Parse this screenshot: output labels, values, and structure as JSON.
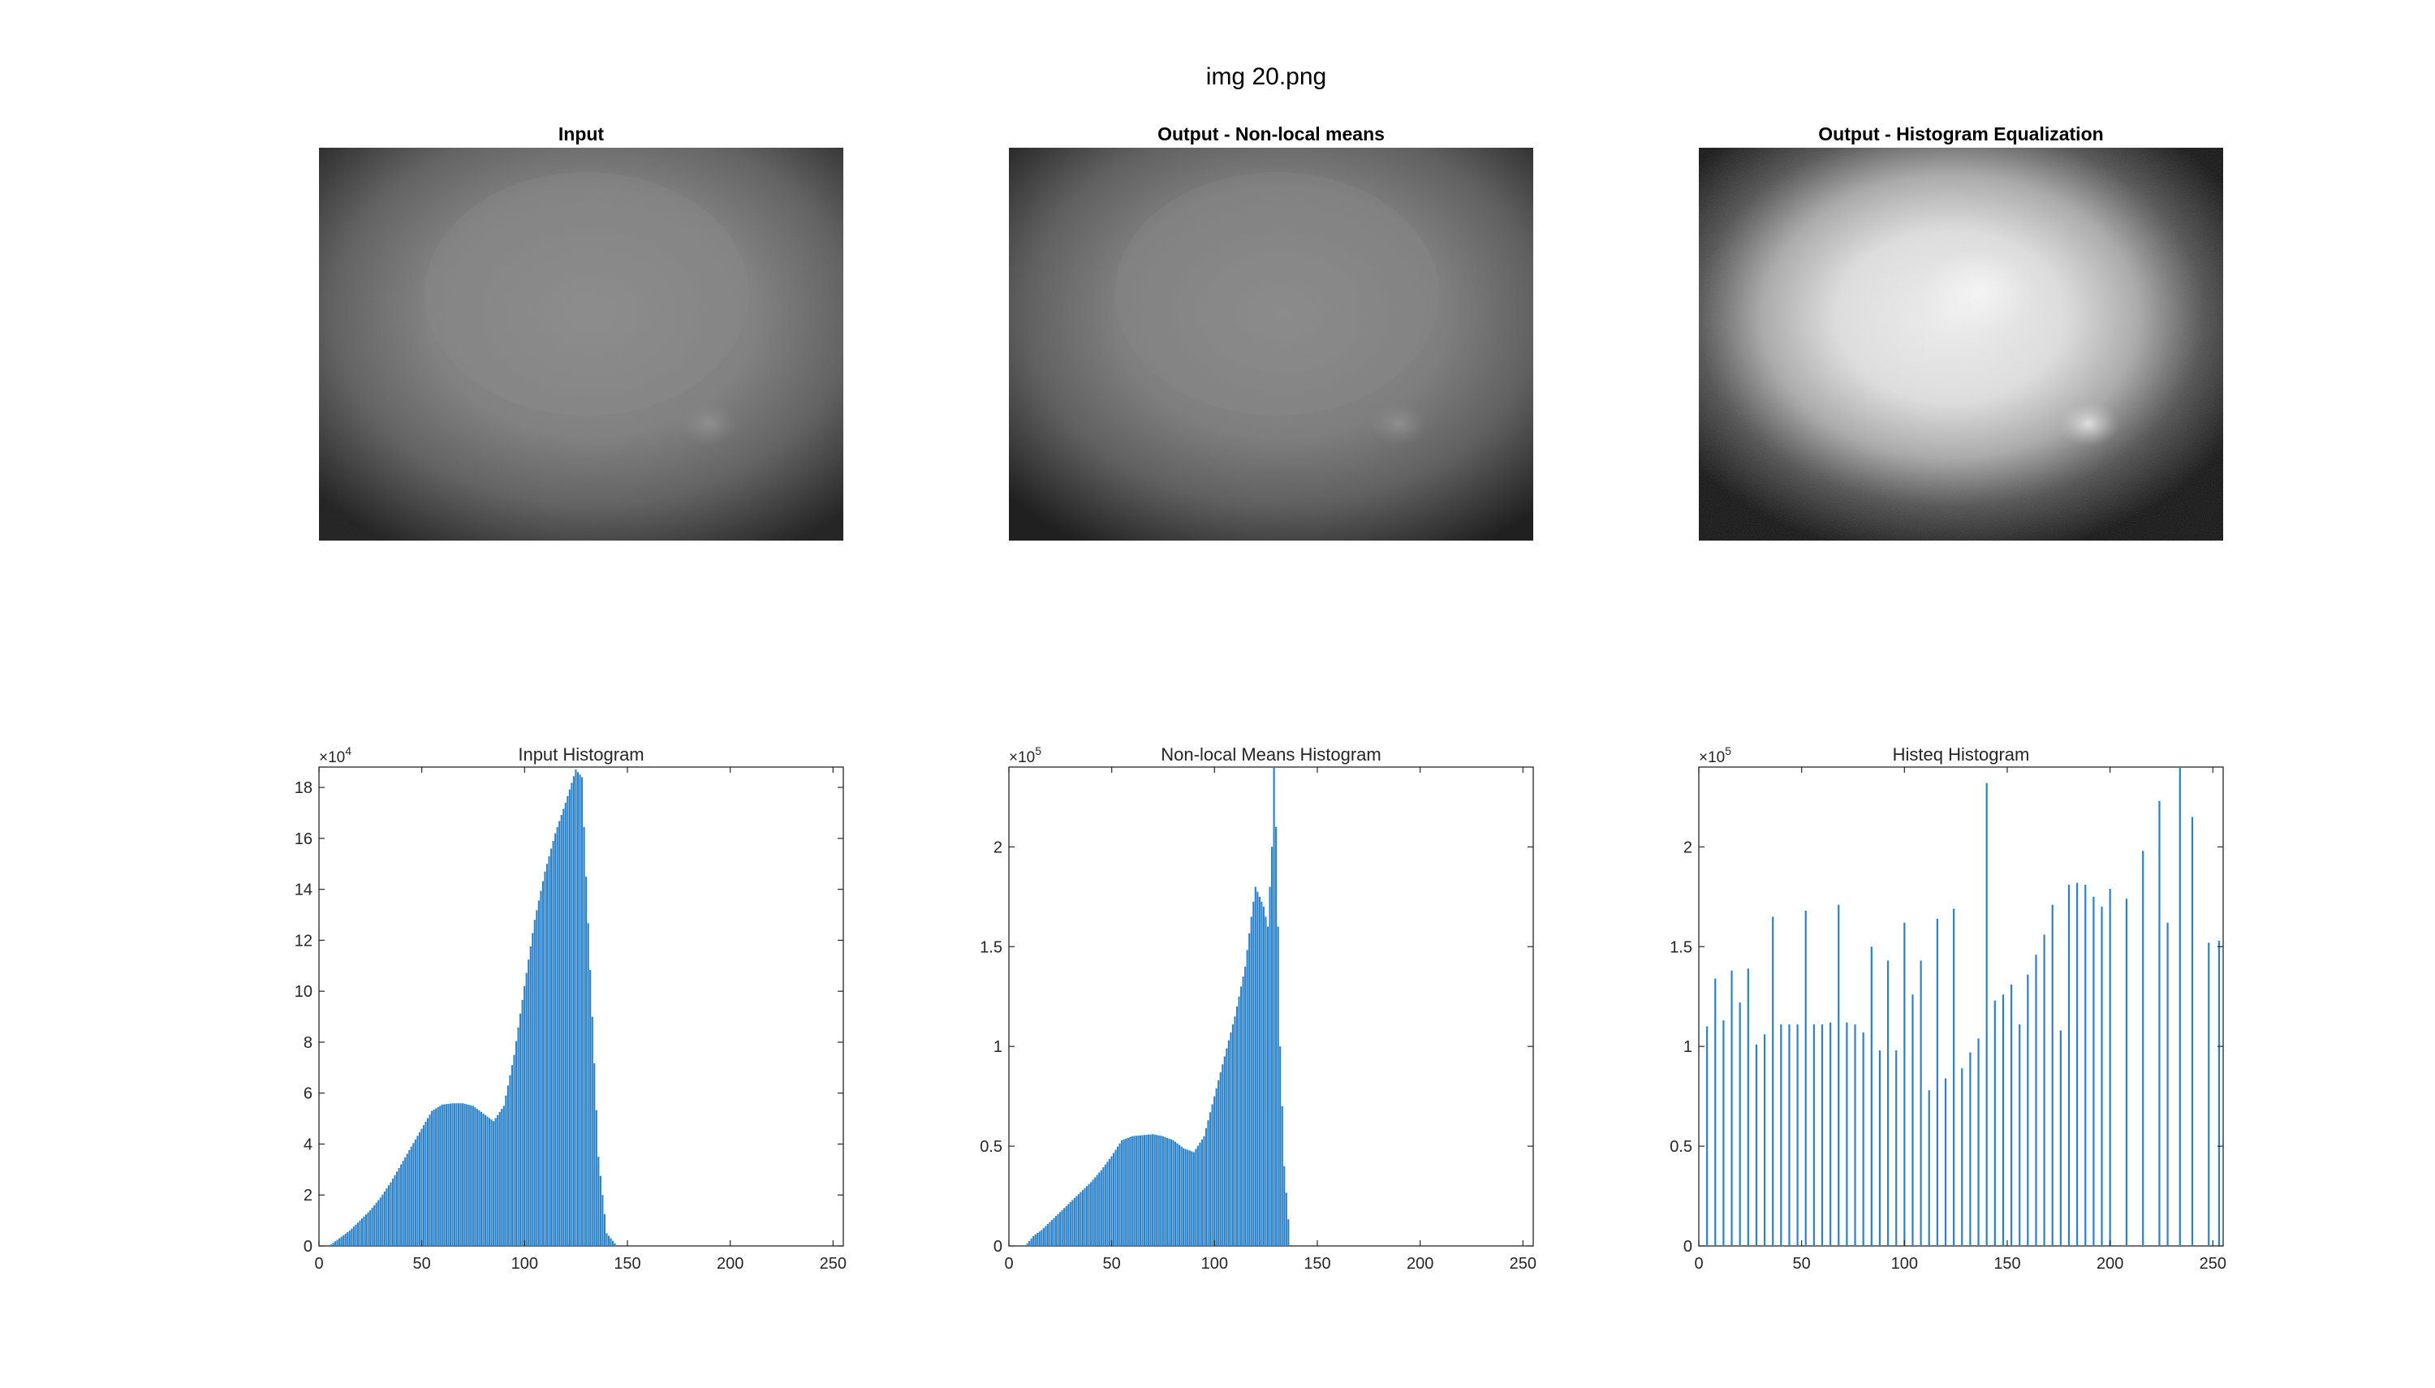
{
  "figure": {
    "title": "img 20.png"
  },
  "panels": [
    {
      "title": "Input",
      "style": "input"
    },
    {
      "title": "Output - Non-local means",
      "style": "nlm"
    },
    {
      "title": "Output - Histogram Equalization",
      "style": "histeq"
    }
  ],
  "colors": {
    "bar": "#2b82c9",
    "axis": "#262626",
    "background": "#ffffff"
  },
  "chart_data": [
    {
      "type": "bar",
      "title": "Input Histogram",
      "xlabel": "",
      "ylabel": "",
      "exponent_label": "×10",
      "exponent": "4",
      "xlim": [
        0,
        255
      ],
      "ylim": [
        0,
        18.8
      ],
      "xticks": [
        0,
        50,
        100,
        150,
        200,
        250
      ],
      "yticks": [
        0,
        2,
        4,
        6,
        8,
        10,
        12,
        14,
        16,
        18
      ],
      "yticklabels": [
        "0",
        "2",
        "4",
        "6",
        "8",
        "10",
        "12",
        "14",
        "16",
        "18"
      ],
      "x": [
        5,
        10,
        15,
        20,
        25,
        30,
        35,
        40,
        45,
        50,
        55,
        60,
        65,
        70,
        75,
        80,
        85,
        90,
        95,
        100,
        105,
        110,
        115,
        120,
        125,
        128,
        130,
        133,
        136,
        140,
        145
      ],
      "values": [
        0,
        0.3,
        0.6,
        1.0,
        1.4,
        1.9,
        2.5,
        3.2,
        3.9,
        4.6,
        5.3,
        5.55,
        5.6,
        5.6,
        5.5,
        5.2,
        4.9,
        5.5,
        7.5,
        10.2,
        12.8,
        14.7,
        16.2,
        17.4,
        18.7,
        18.4,
        14.5,
        9.0,
        3.5,
        0.5,
        0
      ]
    },
    {
      "type": "bar",
      "title": "Non-local Means Histogram",
      "xlabel": "",
      "ylabel": "",
      "exponent_label": "×10",
      "exponent": "5",
      "xlim": [
        0,
        255
      ],
      "ylim": [
        0,
        2.4
      ],
      "xticks": [
        0,
        50,
        100,
        150,
        200,
        250
      ],
      "yticks": [
        0,
        0.5,
        1,
        1.5,
        2
      ],
      "yticklabels": [
        "0",
        "0.5",
        "1",
        "1.5",
        "2"
      ],
      "x": [
        8,
        12,
        16,
        20,
        25,
        30,
        35,
        40,
        45,
        50,
        55,
        60,
        65,
        70,
        75,
        80,
        85,
        90,
        95,
        100,
        105,
        110,
        115,
        118,
        120,
        122,
        124,
        126,
        128,
        129,
        130,
        131,
        132,
        134,
        137
      ],
      "values": [
        0,
        0.05,
        0.08,
        0.12,
        0.17,
        0.22,
        0.27,
        0.32,
        0.38,
        0.45,
        0.53,
        0.55,
        0.555,
        0.56,
        0.55,
        0.53,
        0.49,
        0.47,
        0.55,
        0.75,
        0.95,
        1.15,
        1.4,
        1.65,
        1.8,
        1.75,
        1.7,
        1.6,
        2.0,
        2.4,
        2.1,
        1.6,
        1.0,
        0.4,
        0
      ]
    },
    {
      "type": "bar",
      "title": "Histeq Histogram",
      "xlabel": "",
      "ylabel": "",
      "exponent_label": "×10",
      "exponent": "5",
      "xlim": [
        0,
        255
      ],
      "ylim": [
        0,
        2.4
      ],
      "xticks": [
        0,
        50,
        100,
        150,
        200,
        250
      ],
      "yticks": [
        0,
        0.5,
        1,
        1.5,
        2
      ],
      "yticklabels": [
        "0",
        "0.5",
        "1",
        "1.5",
        "2"
      ],
      "x": [
        4,
        8,
        12,
        16,
        20,
        24,
        28,
        32,
        36,
        40,
        44,
        48,
        52,
        56,
        60,
        64,
        68,
        72,
        76,
        80,
        84,
        88,
        92,
        96,
        100,
        104,
        108,
        112,
        116,
        120,
        124,
        128,
        132,
        136,
        140,
        144,
        148,
        152,
        156,
        160,
        164,
        168,
        172,
        176,
        180,
        184,
        188,
        192,
        196,
        200,
        208,
        216,
        224,
        228,
        234,
        240,
        248,
        253
      ],
      "values": [
        1.1,
        1.34,
        1.13,
        1.38,
        1.22,
        1.39,
        1.01,
        1.06,
        1.65,
        1.11,
        1.11,
        1.11,
        1.68,
        1.11,
        1.11,
        1.12,
        1.71,
        1.12,
        1.11,
        1.07,
        1.5,
        0.98,
        1.43,
        0.98,
        1.62,
        1.26,
        1.43,
        0.78,
        1.64,
        0.84,
        1.69,
        0.89,
        0.97,
        1.04,
        2.32,
        1.23,
        1.26,
        1.31,
        1.11,
        1.36,
        1.46,
        1.56,
        1.71,
        1.08,
        1.81,
        1.82,
        1.81,
        1.75,
        1.7,
        1.79,
        1.74,
        1.98,
        2.23,
        1.62,
        2.4,
        2.15,
        1.52,
        1.53
      ]
    }
  ]
}
